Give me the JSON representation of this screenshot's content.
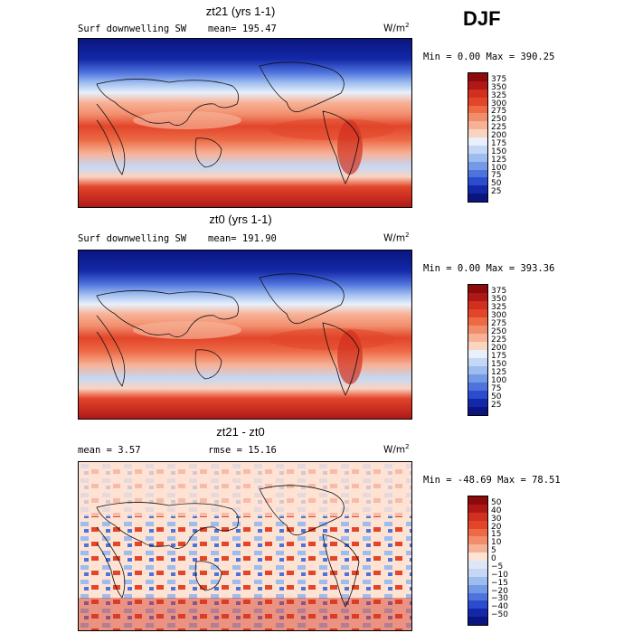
{
  "season": "DJF",
  "panels": [
    {
      "title": "zt21 (yrs 1-1)",
      "variable": "Surf downwelling SW",
      "mean_label": "mean= 195.47",
      "units_base": "W/m",
      "units_exp": "2",
      "minmax": "Min =    0.00 Max = 390.25",
      "colorbar": {
        "labels": [
          "375",
          "350",
          "325",
          "300",
          "275",
          "250",
          "225",
          "200",
          "175",
          "150",
          "125",
          "100",
          "75",
          "50",
          "25"
        ],
        "colors": [
          "#8c0a0a",
          "#b01818",
          "#d2301f",
          "#e2452a",
          "#ed6a45",
          "#f28d6c",
          "#f7b196",
          "#fbd4c0",
          "#e8f0fb",
          "#c4d8f5",
          "#9dbcef",
          "#7499e6",
          "#4f73dd",
          "#2b4ccf",
          "#1328a8",
          "#0a1580"
        ]
      },
      "map_style": "mean"
    },
    {
      "title": "zt0 (yrs 1-1)",
      "variable": "Surf downwelling SW",
      "mean_label": "mean= 191.90",
      "units_base": "W/m",
      "units_exp": "2",
      "minmax": "Min =    0.00 Max = 393.36",
      "colorbar": {
        "labels": [
          "375",
          "350",
          "325",
          "300",
          "275",
          "250",
          "225",
          "200",
          "175",
          "150",
          "125",
          "100",
          "75",
          "50",
          "25"
        ],
        "colors": [
          "#8c0a0a",
          "#b01818",
          "#d2301f",
          "#e2452a",
          "#ed6a45",
          "#f28d6c",
          "#f7b196",
          "#fbd4c0",
          "#e8f0fb",
          "#c4d8f5",
          "#9dbcef",
          "#7499e6",
          "#4f73dd",
          "#2b4ccf",
          "#1328a8",
          "#0a1580"
        ]
      },
      "map_style": "mean"
    },
    {
      "title": "zt21 - zt0",
      "mean_label": "mean =    3.57",
      "rmse_label": "rmse =   15.16",
      "units_base": "W/m",
      "units_exp": "2",
      "minmax": "Min = -48.69 Max =  78.51",
      "colorbar": {
        "labels": [
          "50",
          "40",
          "30",
          "20",
          "15",
          "10",
          "5",
          "0",
          "−5",
          "−10",
          "−15",
          "−20",
          "−30",
          "−40",
          "−50"
        ],
        "colors": [
          "#8c0a0a",
          "#b01818",
          "#d2301f",
          "#e2452a",
          "#ed6a45",
          "#f28d6c",
          "#f7b196",
          "#fde3d4",
          "#dde8f7",
          "#c4d8f5",
          "#9dbcef",
          "#7499e6",
          "#4f73dd",
          "#2b4ccf",
          "#1328a8",
          "#0a1580"
        ]
      },
      "map_style": "diff"
    }
  ]
}
